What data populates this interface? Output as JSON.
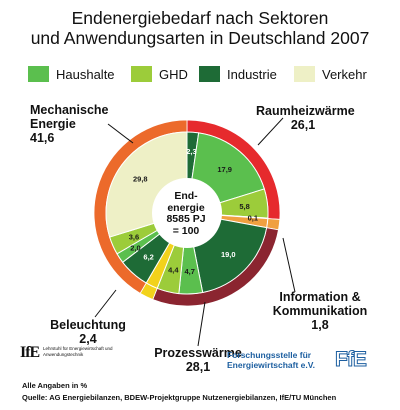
{
  "chart_data": {
    "type": "pie",
    "title": "Endenergiebedarf nach Sektoren",
    "title_line2": "und Anwendungsarten in Deutschland 2007",
    "center_label": [
      "End-",
      "energie",
      "8585 PJ",
      "= 100"
    ],
    "legend": [
      {
        "name": "Haushalte",
        "color": "#5bbf4e"
      },
      {
        "name": "GHD",
        "color": "#9ccc3a"
      },
      {
        "name": "Industrie",
        "color": "#1e6b36"
      },
      {
        "name": "Verkehr",
        "color": "#eef0c6"
      }
    ],
    "outer_ring": [
      {
        "label": "Raumheizwärme",
        "value": 26.1,
        "value_label": "26,1",
        "color": "#e62a2d"
      },
      {
        "label": "Information & Kommunikation",
        "value": 1.8,
        "value_label": "1,8",
        "color": "#f0a040"
      },
      {
        "label": "Prozesswärme",
        "value": 28.1,
        "value_label": "28,1",
        "color": "#8b2530"
      },
      {
        "label": "Beleuchtung",
        "value": 2.4,
        "value_label": "2,4",
        "color": "#f2d21b"
      },
      {
        "label": "Mechanische Energie",
        "value": 41.6,
        "value_label": "41,6",
        "color": "#ec6a2b"
      }
    ],
    "inner_slices": [
      {
        "sector": "Industrie",
        "value": 2.3,
        "label": "2,3",
        "color": "#1e6b36"
      },
      {
        "sector": "Haushalte",
        "value": 17.9,
        "label": "17,9",
        "color": "#5bbf4e"
      },
      {
        "sector": "GHD",
        "value": 5.8,
        "label": "5,8",
        "color": "#9ccc3a"
      },
      {
        "sector": "",
        "value": 0.1,
        "label": "0,1",
        "color": "#cc2b2f"
      },
      {
        "sector": "",
        "value": 1.8,
        "label": "",
        "color": "#f0a040"
      },
      {
        "sector": "Industrie",
        "value": 19.0,
        "label": "19,0",
        "color": "#1e6b36"
      },
      {
        "sector": "Haushalte",
        "value": 4.7,
        "label": "4,7",
        "color": "#5bbf4e"
      },
      {
        "sector": "GHD",
        "value": 4.4,
        "label": "4,4",
        "color": "#9ccc3a"
      },
      {
        "sector": "",
        "value": 2.4,
        "label": "",
        "color": "#f2d21b"
      },
      {
        "sector": "Industrie",
        "value": 6.2,
        "label": "6,2",
        "color": "#1e6b36"
      },
      {
        "sector": "Haushalte",
        "value": 2.0,
        "label": "2,0",
        "color": "#5bbf4e"
      },
      {
        "sector": "GHD",
        "value": 3.6,
        "label": "3,6",
        "color": "#9ccc3a"
      },
      {
        "sector": "Verkehr",
        "value": 29.8,
        "label": "29,8",
        "color": "#eef0c6"
      }
    ]
  },
  "logos": {
    "ife_mark": "IfE",
    "ife_text": "Lehrstuhl für Energiewirtschaft und Anwendungstechnik",
    "ffe_text_1": "Forschungsstelle für",
    "ffe_text_2": "Energiewirtschaft e.V.",
    "ffe_mark": "FfE"
  },
  "footnotes": {
    "line1": "Alle Angaben in %",
    "line2": "Quelle: AG Energiebilanzen, BDEW-Projektgruppe Nutzenergiebilanzen, IfE/TU München"
  }
}
